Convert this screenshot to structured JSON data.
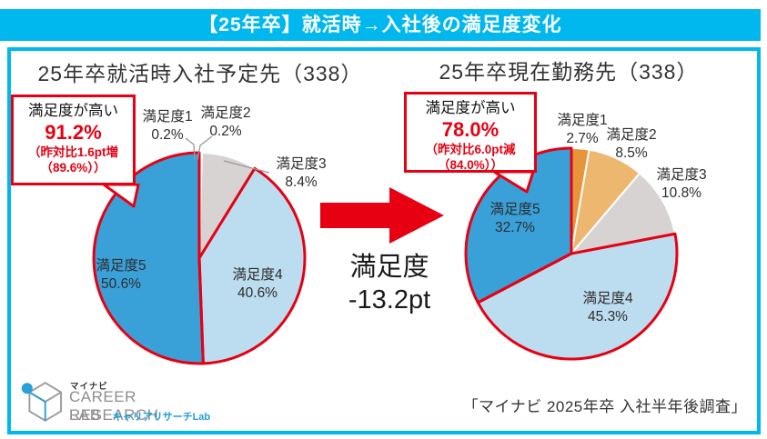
{
  "header": {
    "title": "【25年卒】就活時→入社後の満足度変化"
  },
  "colors": {
    "accent_cyan": "#00B8EE",
    "highlight_red": "#E60012",
    "slice_level1": "#E8943B",
    "slice_level2": "#EDB76F",
    "slice_level3": "#D6D3D2",
    "slice_level4": "#BCDCEF",
    "slice_level5": "#39A0D8",
    "title_text": "#333333"
  },
  "chart_data": [
    {
      "type": "pie",
      "title": "25年卒就活時入社予定先（338）",
      "sample_size": 338,
      "categories": [
        "満足度1",
        "満足度2",
        "満足度3",
        "満足度4",
        "満足度5"
      ],
      "values": [
        0.2,
        0.2,
        8.4,
        40.6,
        50.6
      ],
      "value_labels": [
        "0.2%",
        "0.2%",
        "8.4%",
        "40.6%",
        "50.6%"
      ],
      "colors": [
        "#E8943B",
        "#EDB76F",
        "#D6D3D2",
        "#BCDCEF",
        "#39A0D8"
      ],
      "start_angle": "12-oclock",
      "direction": "clockwise",
      "highlight": {
        "heading": "満足度が高い",
        "pct": "91.2%",
        "note1": "（昨対比1.6pt増",
        "note2": "（89.6%））",
        "group_categories": [
          "満足度4",
          "満足度5"
        ],
        "group_indices": [
          3,
          4
        ],
        "group_total_pct": 91.2,
        "outline_color": "#E60012"
      }
    },
    {
      "type": "pie",
      "title": "25年卒現在勤務先（338）",
      "sample_size": 338,
      "categories": [
        "満足度1",
        "満足度2",
        "満足度3",
        "満足度4",
        "満足度5"
      ],
      "values": [
        2.7,
        8.5,
        10.8,
        45.3,
        32.7
      ],
      "value_labels": [
        "2.7%",
        "8.5%",
        "10.8%",
        "45.3%",
        "32.7%"
      ],
      "colors": [
        "#E8943B",
        "#EDB76F",
        "#D6D3D2",
        "#BCDCEF",
        "#39A0D8"
      ],
      "start_angle": "12-oclock",
      "direction": "clockwise",
      "highlight": {
        "heading": "満足度が高い",
        "pct": "78.0%",
        "note1": "（昨対比6.0pt減",
        "note2": "（84.0%））",
        "group_categories": [
          "満足度4",
          "満足度5"
        ],
        "group_indices": [
          3,
          4
        ],
        "group_total_pct": 78.0,
        "outline_color": "#E60012"
      }
    }
  ],
  "center": {
    "change_label": "満足度",
    "change_value": "-13.2pt"
  },
  "footer": {
    "source": "「マイナビ 2025年卒 入社半年後調査」"
  },
  "logo": {
    "brand_jp": "マイナビ",
    "line1": "CAREER RESEARCH",
    "line2": "LAB",
    "sub_jp": "キャリアリサーチLab"
  }
}
